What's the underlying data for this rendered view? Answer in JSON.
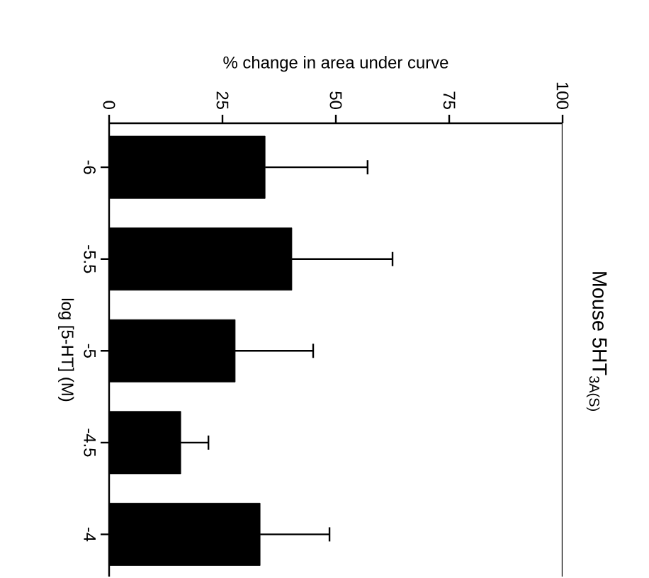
{
  "chart_data": {
    "type": "bar",
    "orientation": "horizontal",
    "title": "Mouse 5HT$_{3A(S)}$",
    "xlabel": "% change in area under curve",
    "ylabel": "log [5-HT] (M)",
    "categories": [
      "-6",
      "-5.5",
      "-5",
      "-4.5",
      "-4"
    ],
    "values": [
      34.4,
      40.3,
      27.8,
      15.8,
      33.3
    ],
    "errors": [
      [
        34.4,
        57
      ],
      [
        40.3,
        62.5
      ],
      [
        27.8,
        45
      ],
      [
        15.8,
        21.9
      ],
      [
        33.3,
        48.6
      ]
    ],
    "color": "#000000",
    "xlim": [
      0,
      100
    ],
    "xticks": [
      0,
      25,
      50,
      75,
      100
    ]
  }
}
